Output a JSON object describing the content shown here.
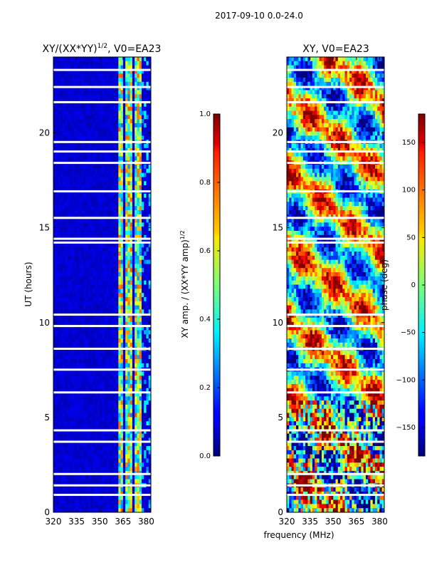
{
  "figure": {
    "suptitle": "2017-09-10 0.0-24.0",
    "shared_xlabel": "frequency (MHz)"
  },
  "chart_data": [
    {
      "type": "heatmap",
      "title": "XY/(XX*YY)^(1/2), V0=EA23",
      "title_main": "XY/(XX*YY)",
      "title_exp": "1/2",
      "title_tail": ", V0=EA23",
      "xlabel": "frequency (MHz)",
      "ylabel": "UT (hours)",
      "xlim": [
        320,
        383
      ],
      "ylim": [
        0,
        24
      ],
      "xticks": [
        320,
        335,
        350,
        365,
        380
      ],
      "yticks": [
        0,
        5,
        10,
        15,
        20
      ],
      "colorbar": {
        "label": "XY amp. / (XX*YY amp)^(1/2)",
        "label_main": "XY amp. / (XX*YY amp)",
        "label_exp": "1/2",
        "range": [
          0.0,
          1.0
        ],
        "ticks": [
          "0.0",
          "0.2",
          "0.4",
          "0.6",
          "0.8",
          "1.0"
        ],
        "colormap": "jet"
      },
      "flagged_ut_hours": [
        0.9,
        1.4,
        2.0,
        3.7,
        4.3,
        6.3,
        7.5,
        8.6,
        9.8,
        10.4,
        14.2,
        14.4,
        15.5,
        16.9,
        18.4,
        19.0,
        19.5,
        21.6,
        22.4,
        23.3
      ]
    },
    {
      "type": "heatmap",
      "title": "XY, V0=EA23",
      "xlabel": "frequency (MHz)",
      "ylabel": "",
      "xlim": [
        320,
        383
      ],
      "ylim": [
        0,
        24
      ],
      "xticks": [
        320,
        335,
        350,
        365,
        380
      ],
      "yticks": [
        0,
        5,
        10,
        15,
        20
      ],
      "colorbar": {
        "label": "phase (deg)",
        "range": [
          -180,
          180
        ],
        "ticks": [
          "−150",
          "−100",
          "−50",
          "0",
          "50",
          "100",
          "150"
        ],
        "colormap": "jet"
      },
      "flagged_ut_hours": [
        0.9,
        1.4,
        2.0,
        3.7,
        4.3,
        6.3,
        7.5,
        8.6,
        9.8,
        10.4,
        14.2,
        14.4,
        15.5,
        16.9,
        18.4,
        19.0,
        19.5,
        21.6,
        22.4,
        23.3
      ]
    }
  ]
}
